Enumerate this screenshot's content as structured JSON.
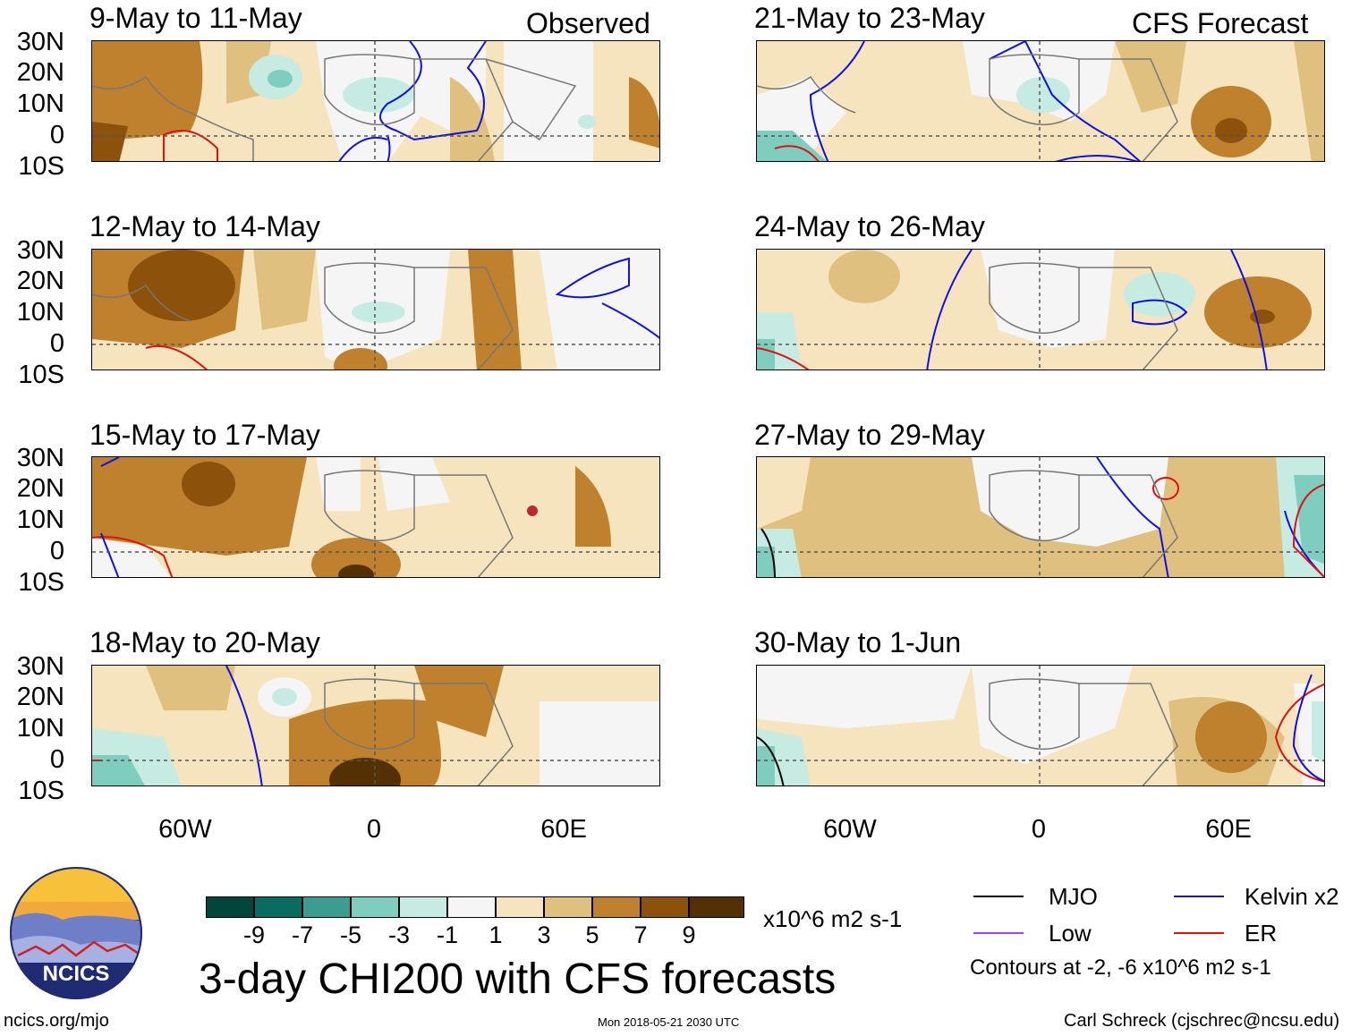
{
  "panels": [
    {
      "title": "9-May to 11-May",
      "tag": "Observed"
    },
    {
      "title": "21-May to 23-May",
      "tag": "CFS Forecast"
    },
    {
      "title": "12-May to 14-May",
      "tag": ""
    },
    {
      "title": "24-May to 26-May",
      "tag": ""
    },
    {
      "title": "15-May to 17-May",
      "tag": ""
    },
    {
      "title": "27-May to 29-May",
      "tag": ""
    },
    {
      "title": "18-May to 20-May",
      "tag": ""
    },
    {
      "title": "30-May to 1-Jun",
      "tag": ""
    }
  ],
  "lat_labels": [
    "30N",
    "20N",
    "10N",
    "0",
    "10S"
  ],
  "lon_labels": [
    "60W",
    "0",
    "60E"
  ],
  "colorbar": {
    "colors": [
      "#01463a",
      "#0a6b60",
      "#3b9d90",
      "#7fcdbf",
      "#c5ebe3",
      "#f5f5f5",
      "#f5e4be",
      "#e0c07f",
      "#bf812d",
      "#8c520b",
      "#543005"
    ],
    "labels": [
      "-9",
      "-7",
      "-5",
      "-3",
      "-1",
      "1",
      "3",
      "5",
      "7",
      "9"
    ],
    "units": "x10^6 m2 s-1"
  },
  "main_title": "3-day CHI200 with CFS forecasts",
  "legend": {
    "items": [
      {
        "label": "MJO",
        "color": "#000000"
      },
      {
        "label": "Kelvin x2",
        "color": "#1010e0"
      },
      {
        "label": "Low",
        "color": "#a040ff"
      },
      {
        "label": "ER",
        "color": "#e01010"
      }
    ],
    "note": "Contours at -2, -6 x10^6 m2 s-1"
  },
  "logo_text": "NCICS",
  "footer": {
    "url": "ncics.org/mjo",
    "timestamp": "Mon 2018-05-21 2030 UTC",
    "author": "Carl Schreck (cjschrec@ncsu.edu)"
  }
}
